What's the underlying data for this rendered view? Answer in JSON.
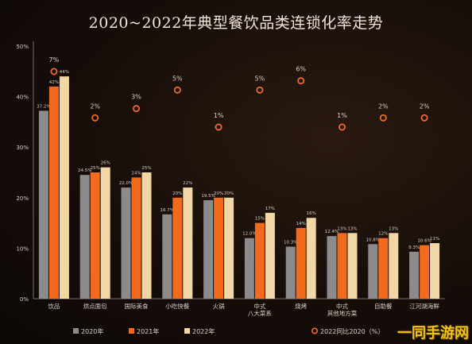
{
  "chart_data": {
    "type": "bar",
    "title": "2020~2022年典型餐饮品类连锁化率走势",
    "categories": [
      "饮品",
      "烘点面包",
      "国际美食",
      "小吃快餐",
      "火锅",
      "中式\n八大菜系",
      "烧烤",
      "中式\n其他地方菜",
      "自助餐",
      "江河湖海鲜"
    ],
    "series": [
      {
        "name": "2020年",
        "values": [
          37.2,
          24.5,
          22.0,
          16.7,
          19.5,
          12.0,
          10.3,
          12.4,
          10.8,
          9.3
        ]
      },
      {
        "name": "2021年",
        "values": [
          42,
          25,
          24,
          20,
          20,
          15,
          14,
          13,
          12,
          10.6
        ]
      },
      {
        "name": "2022年",
        "values": [
          44,
          26,
          25,
          22,
          20,
          17,
          16,
          13,
          13,
          11
        ]
      }
    ],
    "value_labels": [
      [
        "37.2%",
        "42%",
        "44%"
      ],
      [
        "24.5%",
        "25%",
        "26%"
      ],
      [
        "22.0%",
        "24%",
        "25%"
      ],
      [
        "16.7%",
        "20%",
        "22%"
      ],
      [
        "19.5%",
        "20%",
        "20%"
      ],
      [
        "12.0%",
        "15%",
        "17%"
      ],
      [
        "10.3%",
        "14%",
        "16%"
      ],
      [
        "12.4%",
        "13%",
        "13%"
      ],
      [
        "10.8%",
        "12%",
        "13%"
      ],
      [
        "9.3%",
        "10.6%",
        "11%"
      ]
    ],
    "change_series": {
      "name": "2022同比2020（%）",
      "values": [
        7,
        2,
        3,
        5,
        1,
        5,
        6,
        1,
        2,
        2
      ],
      "labels": [
        "7%",
        "2%",
        "3%",
        "5%",
        "1%",
        "5%",
        "6%",
        "1%",
        "2%",
        "2%"
      ]
    },
    "y_ticks": [
      "0%",
      "10%",
      "20%",
      "30%",
      "40%",
      "50%"
    ],
    "ylim": [
      0,
      50
    ],
    "grid": false,
    "legend_position": "bottom",
    "colors": {
      "s2020": "#8b8b8b",
      "s2021": "#f26a1b",
      "s2022": "#f2d7a6",
      "circle": "#ef6a2a",
      "text": "#d9d2c8",
      "axis": "#7a6d62"
    }
  },
  "watermark": "一同手游网"
}
